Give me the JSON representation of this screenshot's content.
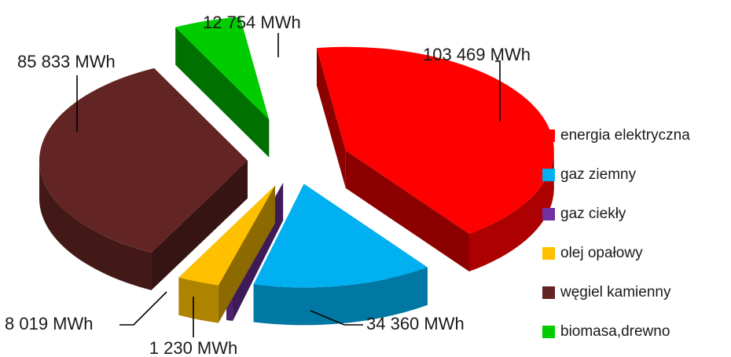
{
  "chart_data": {
    "type": "pie",
    "style": "3d-exploded",
    "title": "",
    "legend_position": "right",
    "categories": [
      "energia elektryczna",
      "gaz ziemny",
      "gaz ciekły",
      "olej opałowy",
      "węgiel kamienny",
      "biomasa,drewno"
    ],
    "values": [
      103469,
      34360,
      1230,
      8019,
      85833,
      12754
    ],
    "unit": "MWh",
    "data_labels": [
      "103 469 MWh",
      "34 360 MWh",
      "1 230 MWh",
      "8 019 MWh",
      "85 833 MWh",
      "12 754 MWh"
    ],
    "colors": [
      "#ff0000",
      "#00b0f0",
      "#7030a0",
      "#ffc000",
      "#632523",
      "#00cc00"
    ]
  }
}
